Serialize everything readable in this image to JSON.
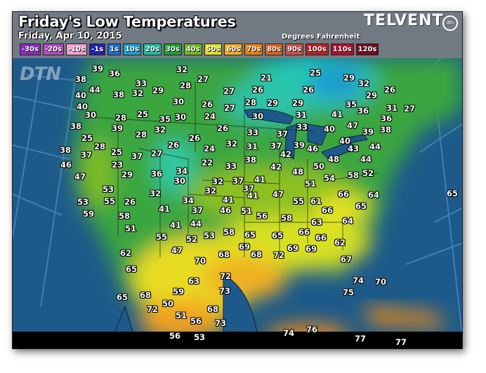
{
  "header": {
    "title": "Friday's Low Temperatures",
    "date": "Friday, Apr 10, 2015",
    "units": "Degrees Fahrenheit",
    "brand": "TELVENT",
    "brand_badge": "dtn",
    "watermark": "DTN"
  },
  "legend": [
    {
      "label": "-30s",
      "color": "#8a2bbf"
    },
    {
      "label": "-20s",
      "color": "#b04cb8"
    },
    {
      "label": "-10s",
      "color": "#f0a0d0"
    },
    {
      "label": "-1s",
      "color": "#2222b0"
    },
    {
      "label": "1s",
      "color": "#1a6fd0"
    },
    {
      "label": "10s",
      "color": "#1aa0d0"
    },
    {
      "label": "20s",
      "color": "#20c0a0"
    },
    {
      "label": "30s",
      "color": "#22a030"
    },
    {
      "label": "40s",
      "color": "#70b820"
    },
    {
      "label": "50s",
      "color": "#e0e020"
    },
    {
      "label": "60s",
      "color": "#f0b020"
    },
    {
      "label": "70s",
      "color": "#f08010"
    },
    {
      "label": "80s",
      "color": "#e06020"
    },
    {
      "label": "90s",
      "color": "#d05050"
    },
    {
      "label": "100s",
      "color": "#c02020"
    },
    {
      "label": "110s",
      "color": "#b01030"
    },
    {
      "label": "120s",
      "color": "#701020"
    }
  ],
  "temperatures": [
    "39",
    "36",
    "32",
    "27",
    "38",
    "44",
    "33",
    "28",
    "27",
    "40",
    "38",
    "32",
    "29",
    "30",
    "26",
    "27",
    "40",
    "30",
    "28",
    "25",
    "35",
    "30",
    "24",
    "38",
    "39",
    "32",
    "28",
    "26",
    "25",
    "26",
    "32",
    "26",
    "28",
    "25",
    "24",
    "38",
    "37",
    "37",
    "27",
    "22",
    "33",
    "46",
    "23",
    "29",
    "36",
    "34",
    "30",
    "32",
    "37",
    "32",
    "47",
    "53",
    "32",
    "34",
    "41",
    "53",
    "55",
    "26",
    "21",
    "25",
    "29",
    "32",
    "26",
    "26",
    "26",
    "28",
    "29",
    "29",
    "29",
    "35",
    "41",
    "36",
    "31",
    "27",
    "30",
    "31",
    "36",
    "33",
    "47",
    "33",
    "37",
    "40",
    "39",
    "38",
    "40",
    "31",
    "37",
    "39",
    "46",
    "43",
    "44",
    "42",
    "44",
    "38",
    "42",
    "48",
    "50",
    "52",
    "58",
    "48",
    "54",
    "51",
    "37",
    "41",
    "41",
    "47",
    "66",
    "64",
    "55",
    "61",
    "65",
    "59",
    "58",
    "51",
    "41",
    "37",
    "46",
    "51",
    "56",
    "58",
    "66",
    "65",
    "41",
    "44",
    "55",
    "52",
    "53",
    "58",
    "65",
    "65",
    "66",
    "63",
    "64",
    "66",
    "62",
    "47",
    "68",
    "69",
    "68",
    "72",
    "69",
    "69",
    "67",
    "62",
    "70",
    "65",
    "72",
    "63",
    "59",
    "73",
    "74",
    "70",
    "75",
    "65",
    "68",
    "72",
    "50",
    "51",
    "56",
    "68",
    "73",
    "56",
    "53",
    "74",
    "76",
    "77",
    "77"
  ]
}
